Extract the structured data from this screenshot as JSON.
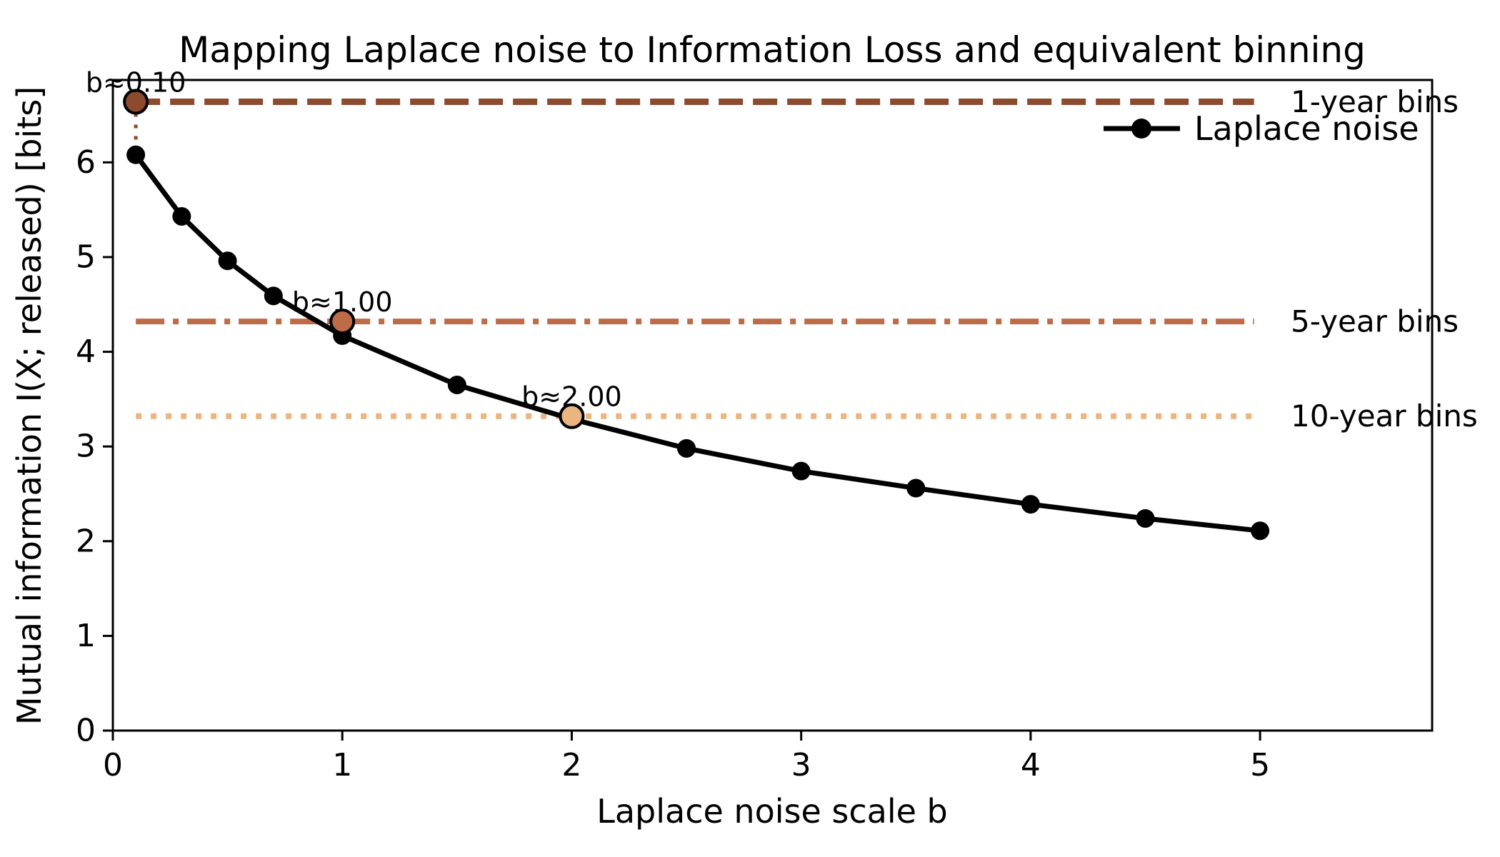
{
  "figure": {
    "background": "#ffffff"
  },
  "chart_data": {
    "type": "line",
    "title": "Mapping Laplace noise to Information Loss and equivalent binning",
    "xlabel": "Laplace noise scale b",
    "ylabel": "Mutual information I(X; released) [bits]",
    "xlim": [
      0,
      5.75
    ],
    "ylim": [
      0,
      6.87
    ],
    "x_ticks": [
      0,
      1,
      2,
      3,
      4,
      5
    ],
    "x_tick_labels": [
      "0",
      "1",
      "2",
      "3",
      "4",
      "5"
    ],
    "y_ticks": [
      0,
      1,
      2,
      3,
      4,
      5,
      6
    ],
    "y_tick_labels": [
      "0",
      "1",
      "2",
      "3",
      "4",
      "5",
      "6"
    ],
    "grid": false,
    "legend_position": "upper right",
    "legend": {
      "label": "Laplace noise"
    },
    "series": [
      {
        "name": "Laplace noise",
        "color": "#000000",
        "marker": "circle",
        "x": [
          0.1,
          0.3,
          0.5,
          0.7,
          1.0,
          1.5,
          2.0,
          2.5,
          3.0,
          3.5,
          4.0,
          4.5,
          5.0
        ],
        "y": [
          6.08,
          5.43,
          4.96,
          4.59,
          4.17,
          3.65,
          3.29,
          2.98,
          2.74,
          2.56,
          2.39,
          2.24,
          2.11
        ]
      }
    ],
    "hlines": [
      {
        "label": "1-year bins",
        "value": 6.64,
        "color": "#8C4A2F",
        "style": "dashed"
      },
      {
        "label": "5-year bins",
        "value": 4.32,
        "color": "#BE6B48",
        "style": "dashdot"
      },
      {
        "label": "10-year bins",
        "value": 3.32,
        "color": "#EBB582",
        "style": "dotted"
      }
    ],
    "annotations": [
      {
        "label": "b≈0.10",
        "x": 0.1,
        "y": 6.64,
        "curve_y": 6.08,
        "color": "#8C4A2F"
      },
      {
        "label": "b≈1.00",
        "x": 1.0,
        "y": 4.32,
        "curve_y": 4.17,
        "color": "#BE6B48"
      },
      {
        "label": "b≈2.00",
        "x": 2.0,
        "y": 3.32,
        "curve_y": 3.29,
        "color": "#EBB582"
      }
    ]
  }
}
